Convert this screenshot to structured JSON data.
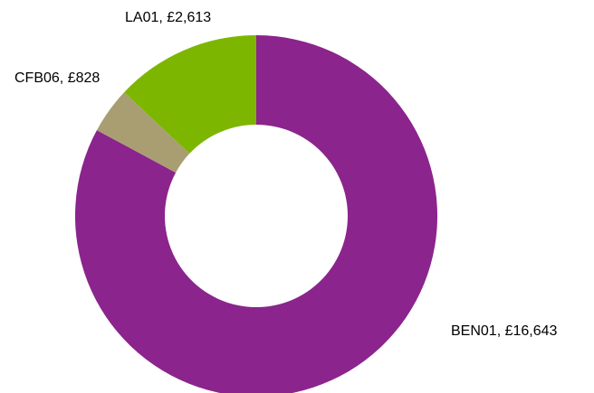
{
  "chart_data": {
    "type": "pie",
    "variant": "donut",
    "title": "",
    "legend": "none",
    "slices": [
      {
        "name": "BEN01",
        "value": 16643,
        "label": "BEN01, £16,643",
        "color": "#8B248C"
      },
      {
        "name": "CFB06",
        "value": 828,
        "label": "CFB06, £828",
        "color": "#A89E72"
      },
      {
        "name": "LA01",
        "value": 2613,
        "label": "LA01, £2,613",
        "color": "#7DB600"
      }
    ]
  }
}
